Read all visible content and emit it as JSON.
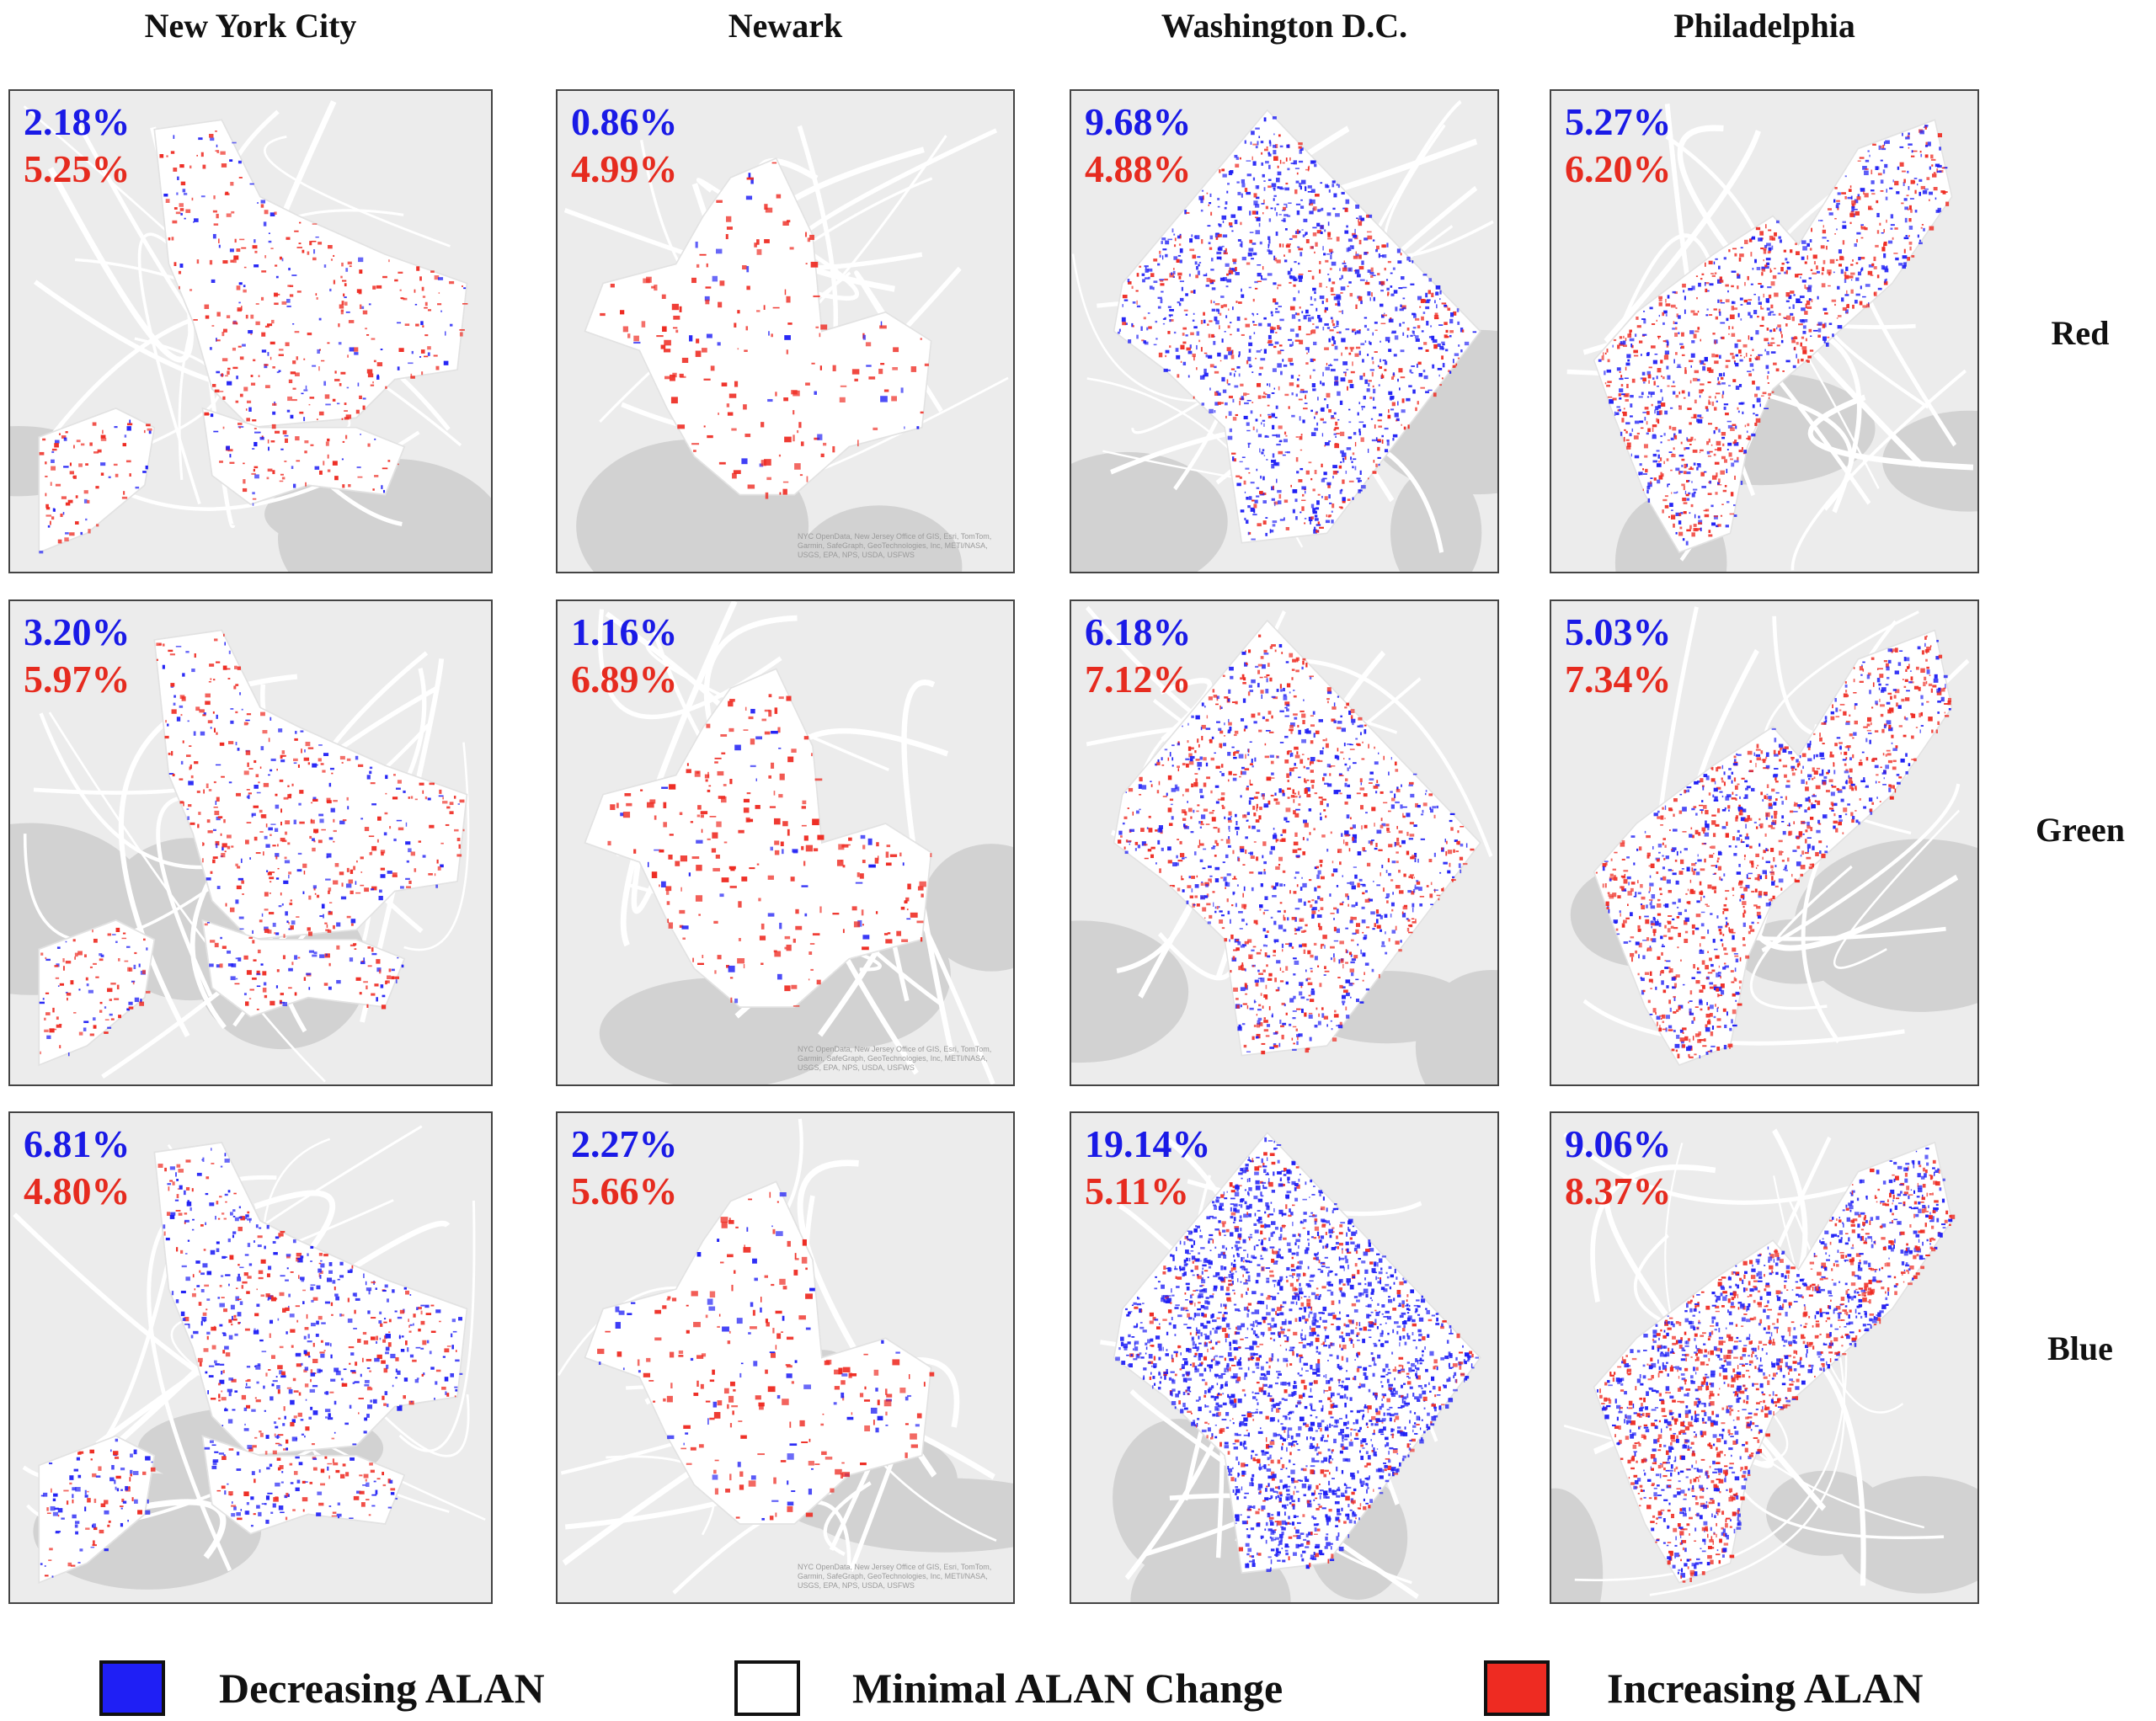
{
  "cities": [
    "New York City",
    "Newark",
    "Washington D.C.",
    "Philadelphia"
  ],
  "bands": [
    "Red",
    "Green",
    "Blue"
  ],
  "panels": [
    [
      {
        "decreasing": "2.18%",
        "increasing": "5.25%"
      },
      {
        "decreasing": "0.86%",
        "increasing": "4.99%"
      },
      {
        "decreasing": "9.68%",
        "increasing": "4.88%"
      },
      {
        "decreasing": "5.27%",
        "increasing": "6.20%"
      }
    ],
    [
      {
        "decreasing": "3.20%",
        "increasing": "5.97%"
      },
      {
        "decreasing": "1.16%",
        "increasing": "6.89%"
      },
      {
        "decreasing": "6.18%",
        "increasing": "7.12%"
      },
      {
        "decreasing": "5.03%",
        "increasing": "7.34%"
      }
    ],
    [
      {
        "decreasing": "6.81%",
        "increasing": "4.80%"
      },
      {
        "decreasing": "2.27%",
        "increasing": "5.66%"
      },
      {
        "decreasing": "19.14%",
        "increasing": "5.11%"
      },
      {
        "decreasing": "9.06%",
        "increasing": "8.37%"
      }
    ]
  ],
  "attribution": {
    "newark": "NYC OpenData, New Jersey Office of GIS, Esri, TomTom, Garmin, SafeGraph, GeoTechnologies, Inc, METI/NASA, USGS, EPA, NPS, USDA, USFWS"
  },
  "legend": [
    {
      "label": "Decreasing ALAN",
      "color": "#1f1ff5"
    },
    {
      "label": "Minimal ALAN Change",
      "color": "#ffffff"
    },
    {
      "label": "Increasing ALAN",
      "color": "#ee2b22"
    }
  ],
  "colors": {
    "decrease": "#1f1ff5",
    "increase": "#ee2b22",
    "basemap": "#ececec",
    "water": "#d2d2d2",
    "roads": "#ffffff"
  }
}
